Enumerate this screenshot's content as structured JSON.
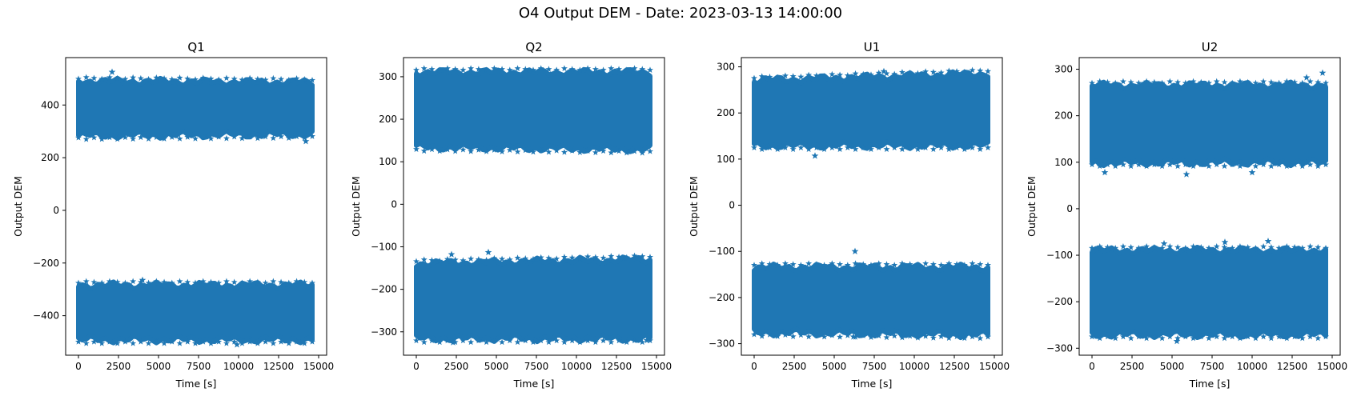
{
  "figure": {
    "title": "O4 Output DEM - Date: 2023-03-13 14:00:00",
    "marker_color": "#1f77b4"
  },
  "chart_data": [
    {
      "type": "scatter",
      "title": "Q1",
      "xlabel": "Time [s]",
      "ylabel": "Output DEM",
      "marker": "star",
      "xlim": [
        -800,
        15500
      ],
      "ylim": [
        -550,
        580
      ],
      "x_ticks": [
        0,
        2500,
        5000,
        7500,
        10000,
        12500,
        15000
      ],
      "x_tick_labels": [
        "0",
        "2500",
        "5000",
        "7500",
        "10000",
        "12500",
        "15000"
      ],
      "y_ticks": [
        -400,
        -200,
        0,
        200,
        400
      ],
      "y_tick_labels": [
        "−400",
        "−200",
        "0",
        "200",
        "400"
      ],
      "series": [
        {
          "x_range": [
            0,
            14600
          ],
          "upper_band": [
            {
              "x": 0,
              "y": 490
            },
            {
              "x": 14600,
              "y": 485
            }
          ],
          "lower_band": [
            {
              "x": 0,
              "y": 285
            },
            {
              "x": 14600,
              "y": 290
            }
          ]
        },
        {
          "x_range": [
            0,
            14600
          ],
          "upper_band": [
            {
              "x": 0,
              "y": -285
            },
            {
              "x": 14600,
              "y": -285
            }
          ],
          "lower_band": [
            {
              "x": 0,
              "y": -490
            },
            {
              "x": 14600,
              "y": -490
            }
          ]
        }
      ],
      "outliers": [
        {
          "x": 2100,
          "y": 525
        },
        {
          "x": 14200,
          "y": 262
        },
        {
          "x": 9900,
          "y": -510
        },
        {
          "x": 4000,
          "y": -265
        }
      ]
    },
    {
      "type": "scatter",
      "title": "Q2",
      "xlabel": "Time [s]",
      "ylabel": "Output DEM",
      "marker": "star",
      "xlim": [
        -800,
        15500
      ],
      "ylim": [
        -355,
        345
      ],
      "x_ticks": [
        0,
        2500,
        5000,
        7500,
        10000,
        12500,
        15000
      ],
      "x_tick_labels": [
        "0",
        "2500",
        "5000",
        "7500",
        "10000",
        "12500",
        "15000"
      ],
      "y_ticks": [
        -300,
        -200,
        -100,
        0,
        100,
        200,
        300
      ],
      "y_tick_labels": [
        "−300",
        "−200",
        "−100",
        "0",
        "100",
        "200",
        "300"
      ],
      "series": [
        {
          "x_range": [
            0,
            14600
          ],
          "upper_band": [
            {
              "x": 0,
              "y": 310
            },
            {
              "x": 14600,
              "y": 310
            }
          ],
          "lower_band": [
            {
              "x": 0,
              "y": 135
            },
            {
              "x": 14600,
              "y": 130
            }
          ]
        },
        {
          "x_range": [
            0,
            14600
          ],
          "upper_band": [
            {
              "x": 0,
              "y": -140
            },
            {
              "x": 14600,
              "y": -130
            }
          ],
          "lower_band": [
            {
              "x": 0,
              "y": -315
            },
            {
              "x": 14600,
              "y": -315
            }
          ]
        }
      ],
      "outliers": [
        {
          "x": 2200,
          "y": -118
        },
        {
          "x": 4500,
          "y": -113
        },
        {
          "x": 14400,
          "y": -320
        },
        {
          "x": 2300,
          "y": -325
        }
      ]
    },
    {
      "type": "scatter",
      "title": "U1",
      "xlabel": "Time [s]",
      "ylabel": "Output DEM",
      "marker": "star",
      "xlim": [
        -800,
        15500
      ],
      "ylim": [
        -325,
        320
      ],
      "x_ticks": [
        0,
        2500,
        5000,
        7500,
        10000,
        12500,
        15000
      ],
      "x_tick_labels": [
        "0",
        "2500",
        "5000",
        "7500",
        "10000",
        "12500",
        "15000"
      ],
      "y_ticks": [
        -300,
        -200,
        -100,
        0,
        100,
        200,
        300
      ],
      "y_tick_labels": [
        "−300",
        "−200",
        "−100",
        "0",
        "100",
        "200",
        "300"
      ],
      "series": [
        {
          "x_range": [
            0,
            14600
          ],
          "upper_band": [
            {
              "x": 0,
              "y": 270
            },
            {
              "x": 14600,
              "y": 285
            }
          ],
          "lower_band": [
            {
              "x": 0,
              "y": 130
            },
            {
              "x": 14600,
              "y": 130
            }
          ]
        },
        {
          "x_range": [
            0,
            14600
          ],
          "upper_band": [
            {
              "x": 0,
              "y": -135
            },
            {
              "x": 14600,
              "y": -135
            }
          ],
          "lower_band": [
            {
              "x": 0,
              "y": -275
            },
            {
              "x": 14600,
              "y": -280
            }
          ]
        }
      ],
      "outliers": [
        {
          "x": 3800,
          "y": 107
        },
        {
          "x": 6300,
          "y": -100
        },
        {
          "x": 8100,
          "y": 290
        },
        {
          "x": 6200,
          "y": -285
        }
      ]
    },
    {
      "type": "scatter",
      "title": "U2",
      "xlabel": "Time [s]",
      "ylabel": "Output DEM",
      "marker": "star",
      "xlim": [
        -800,
        15500
      ],
      "ylim": [
        -315,
        325
      ],
      "x_ticks": [
        0,
        2500,
        5000,
        7500,
        10000,
        12500,
        15000
      ],
      "x_tick_labels": [
        "0",
        "2500",
        "5000",
        "7500",
        "10000",
        "12500",
        "15000"
      ],
      "y_ticks": [
        -300,
        -200,
        -100,
        0,
        100,
        200,
        300
      ],
      "y_tick_labels": [
        "−300",
        "−200",
        "−100",
        "0",
        "100",
        "200",
        "300"
      ],
      "series": [
        {
          "x_range": [
            0,
            14600
          ],
          "upper_band": [
            {
              "x": 0,
              "y": 265
            },
            {
              "x": 14600,
              "y": 265
            }
          ],
          "lower_band": [
            {
              "x": 0,
              "y": 100
            },
            {
              "x": 14600,
              "y": 100
            }
          ]
        },
        {
          "x_range": [
            0,
            14600
          ],
          "upper_band": [
            {
              "x": 0,
              "y": -90
            },
            {
              "x": 14600,
              "y": -90
            }
          ],
          "lower_band": [
            {
              "x": 0,
              "y": -270
            },
            {
              "x": 14600,
              "y": -270
            }
          ]
        }
      ],
      "outliers": [
        {
          "x": 14400,
          "y": 292
        },
        {
          "x": 13400,
          "y": 282
        },
        {
          "x": 800,
          "y": 78
        },
        {
          "x": 5900,
          "y": 74
        },
        {
          "x": 10000,
          "y": 78
        },
        {
          "x": 11000,
          "y": -70
        },
        {
          "x": 8300,
          "y": -72
        },
        {
          "x": 4500,
          "y": -75
        },
        {
          "x": 5300,
          "y": -285
        }
      ]
    }
  ]
}
